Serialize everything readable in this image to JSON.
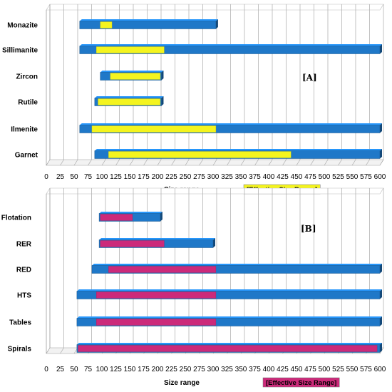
{
  "chart_data": [
    {
      "type": "bar",
      "panel_label": "[A]",
      "categories": [
        "Monazite",
        "Sillimanite",
        "Zircon",
        "Rutile",
        "Ilmenite",
        "Garnet"
      ],
      "series": [
        {
          "name": "Size range",
          "ranges": [
            [
              60,
              305
            ],
            [
              60,
              600
            ],
            [
              97,
              207
            ],
            [
              87,
              207
            ],
            [
              60,
              600
            ],
            [
              87,
              600
            ]
          ]
        },
        {
          "name": "Effective Size Range",
          "ranges": [
            [
              97,
              118
            ],
            [
              90,
              212
            ],
            [
              115,
              205
            ],
            [
              93,
              205
            ],
            [
              82,
              305
            ],
            [
              112,
              440
            ]
          ]
        }
      ],
      "xlim": [
        0,
        600
      ],
      "xticks": [
        "0",
        "25",
        "50",
        "75",
        "100",
        "125",
        "150",
        "175",
        "200",
        "225",
        "250",
        "275",
        "300",
        "325",
        "350",
        "375",
        "400",
        "425",
        "450",
        "475",
        "500",
        "525",
        "550",
        "575",
        "600"
      ],
      "xlabel": "Size range",
      "legend_label": "[Effective Size Range]",
      "grid": true,
      "colors": {
        "range": "#1f78c8",
        "effective": "#f4f41e"
      }
    },
    {
      "type": "bar",
      "panel_label": "[B]",
      "categories": [
        "Flotation",
        "RER",
        "RED",
        "HTS",
        "Tables",
        "Spirals"
      ],
      "series": [
        {
          "name": "Size range",
          "ranges": [
            [
              95,
              205
            ],
            [
              95,
              300
            ],
            [
              82,
              600
            ],
            [
              55,
              600
            ],
            [
              55,
              600
            ],
            [
              55,
              600
            ]
          ]
        },
        {
          "name": "Effective Size Range",
          "ranges": [
            [
              97,
              155
            ],
            [
              97,
              212
            ],
            [
              112,
              305
            ],
            [
              90,
              305
            ],
            [
              90,
              305
            ],
            [
              57,
              595
            ]
          ]
        }
      ],
      "xlim": [
        0,
        600
      ],
      "xticks": [
        "0",
        "25",
        "50",
        "75",
        "100",
        "125",
        "150",
        "175",
        "200",
        "225",
        "250",
        "275",
        "300",
        "325",
        "350",
        "375",
        "400",
        "425",
        "450",
        "475",
        "500",
        "525",
        "550",
        "575",
        "600"
      ],
      "xlabel": "Size range",
      "legend_label": "[Effective Size Range]",
      "grid": true,
      "colors": {
        "range": "#1f78c8",
        "effective": "#cc2a7a"
      }
    }
  ]
}
